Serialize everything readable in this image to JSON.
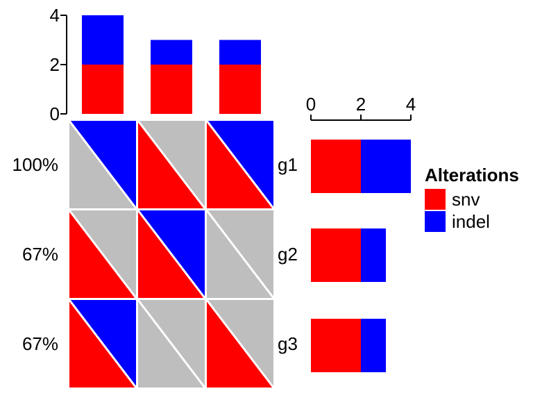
{
  "colors": {
    "snv": "#FF0000",
    "indel": "#0000FF",
    "background_cell": "#BEBEBE",
    "cell_divider": "#FFFFFF",
    "axis": "#000000",
    "canvas": "#FFFFFF"
  },
  "left_labels": {
    "percents": [
      "100%",
      "67%",
      "67%"
    ]
  },
  "gene_labels": [
    "g1",
    "g2",
    "g3"
  ],
  "top_axis": {
    "tick_labels": [
      "0",
      "2",
      "4"
    ],
    "max": 4
  },
  "right_axis": {
    "tick_labels": [
      "0",
      "2",
      "4"
    ],
    "max": 4
  },
  "legend": {
    "title": "Alterations",
    "items": [
      {
        "label": "snv",
        "color": "#FF0000"
      },
      {
        "label": "indel",
        "color": "#0000FF"
      }
    ]
  },
  "chart_data": [
    {
      "type": "heatmap",
      "name": "oncoprint-matrix",
      "rows": [
        "g1",
        "g2",
        "g3"
      ],
      "row_alteration_percents": [
        "100%",
        "67%",
        "67%"
      ],
      "n_columns": 3,
      "cell_alterations": [
        [
          [
            "indel"
          ],
          [
            "snv"
          ],
          [
            "snv",
            "indel"
          ]
        ],
        [
          [
            "snv"
          ],
          [
            "snv",
            "indel"
          ],
          []
        ],
        [
          [
            "snv",
            "indel"
          ],
          [],
          [
            "snv"
          ]
        ]
      ],
      "encoding": {
        "snv": "lower-left triangle, red",
        "indel": "upper-right triangle, blue",
        "none": "gray triangle"
      }
    },
    {
      "type": "bar",
      "name": "column-totals-barplot",
      "orientation": "vertical",
      "stacked": true,
      "series": [
        {
          "name": "snv",
          "color": "#FF0000",
          "values": [
            2,
            2,
            2
          ]
        },
        {
          "name": "indel",
          "color": "#0000FF",
          "values": [
            2,
            1,
            1
          ]
        }
      ],
      "ylim": [
        0,
        4
      ],
      "yticks": [
        0,
        2,
        4
      ],
      "grid": false,
      "legend_position": "none"
    },
    {
      "type": "bar",
      "name": "row-totals-barplot",
      "orientation": "horizontal",
      "stacked": true,
      "categories": [
        "g1",
        "g2",
        "g3"
      ],
      "series": [
        {
          "name": "snv",
          "color": "#FF0000",
          "values": [
            2,
            2,
            2
          ]
        },
        {
          "name": "indel",
          "color": "#0000FF",
          "values": [
            2,
            1,
            1
          ]
        }
      ],
      "xlim": [
        0,
        4
      ],
      "xticks": [
        0,
        2,
        4
      ],
      "grid": false,
      "legend_position": "right"
    }
  ]
}
